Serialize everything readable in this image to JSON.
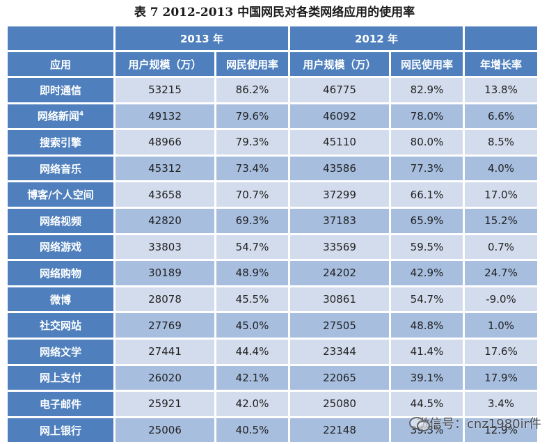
{
  "caption": "表 7  2012-2013 中国网民对各类网络应用的使用率",
  "header": {
    "year_2013": "2013 年",
    "year_2012": "2012 年",
    "app_label": "应用",
    "users_2013": "用户规模（万）",
    "rate_2013": "网民使用率",
    "users_2012": "用户规模（万）",
    "rate_2012": "网民使用率",
    "growth": "年增长率"
  },
  "rows": [
    {
      "app": "即时通信",
      "sup": "",
      "u13": "53215",
      "r13": "86.2%",
      "u12": "46775",
      "r12": "82.9%",
      "g": "13.8%"
    },
    {
      "app": "网络新闻",
      "sup": "4",
      "u13": "49132",
      "r13": "79.6%",
      "u12": "46092",
      "r12": "78.0%",
      "g": "6.6%"
    },
    {
      "app": "搜索引擎",
      "sup": "",
      "u13": "48966",
      "r13": "79.3%",
      "u12": "45110",
      "r12": "80.0%",
      "g": "8.5%"
    },
    {
      "app": "网络音乐",
      "sup": "",
      "u13": "45312",
      "r13": "73.4%",
      "u12": "43586",
      "r12": "77.3%",
      "g": "4.0%"
    },
    {
      "app": "博客/个人空间",
      "sup": "",
      "u13": "43658",
      "r13": "70.7%",
      "u12": "37299",
      "r12": "66.1%",
      "g": "17.0%"
    },
    {
      "app": "网络视频",
      "sup": "",
      "u13": "42820",
      "r13": "69.3%",
      "u12": "37183",
      "r12": "65.9%",
      "g": "15.2%"
    },
    {
      "app": "网络游戏",
      "sup": "",
      "u13": "33803",
      "r13": "54.7%",
      "u12": "33569",
      "r12": "59.5%",
      "g": "0.7%"
    },
    {
      "app": "网络购物",
      "sup": "",
      "u13": "30189",
      "r13": "48.9%",
      "u12": "24202",
      "r12": "42.9%",
      "g": "24.7%"
    },
    {
      "app": "微博",
      "sup": "",
      "u13": "28078",
      "r13": "45.5%",
      "u12": "30861",
      "r12": "54.7%",
      "g": "-9.0%"
    },
    {
      "app": "社交网站",
      "sup": "",
      "u13": "27769",
      "r13": "45.0%",
      "u12": "27505",
      "r12": "48.8%",
      "g": "1.0%"
    },
    {
      "app": "网络文学",
      "sup": "",
      "u13": "27441",
      "r13": "44.4%",
      "u12": "23344",
      "r12": "41.4%",
      "g": "17.6%"
    },
    {
      "app": "网上支付",
      "sup": "",
      "u13": "26020",
      "r13": "42.1%",
      "u12": "22065",
      "r12": "39.1%",
      "g": "17.9%"
    },
    {
      "app": "电子邮件",
      "sup": "",
      "u13": "25921",
      "r13": "42.0%",
      "u12": "25080",
      "r12": "44.5%",
      "g": "3.4%"
    },
    {
      "app": "网上银行",
      "sup": "",
      "u13": "25006",
      "r13": "40.5%",
      "u12": "22148",
      "r12": "39.3%",
      "g": "12.9%"
    }
  ],
  "watermark": {
    "text": "微信号：cnz1980ir件",
    "icon": "wechat-icon"
  },
  "colors": {
    "header_bg": "#4f80bd",
    "row_light": "#d3dcec",
    "row_dark": "#a7bedf"
  }
}
